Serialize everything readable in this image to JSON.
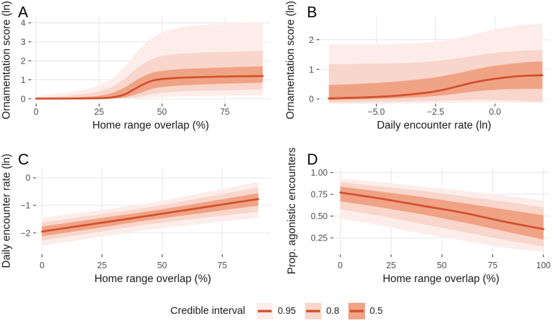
{
  "figure": {
    "background": "#ffffff"
  },
  "style": {
    "line_color": "#d1512b",
    "grid_color": "#ebebeb",
    "tick_color": "#333333",
    "tick_label_color": "#4d4d4d",
    "axis_title_color": "#1a1a1a",
    "panel_letter_color": "#000000"
  },
  "legend": {
    "title": "Credible interval",
    "items": [
      {
        "label": "0.95",
        "fill": "#fdedea"
      },
      {
        "label": "0.8",
        "fill": "#f9d6cb"
      },
      {
        "label": "0.5",
        "fill": "#f0a285"
      }
    ]
  },
  "chart_data": [
    {
      "panel_label": "A",
      "type": "area",
      "xlabel": "Home range overlap (%)",
      "ylabel": "Ornamentation score (ln)",
      "xlim": [
        -2,
        93
      ],
      "ylim": [
        -0.26,
        4.33
      ],
      "grid": true,
      "xticks": [
        {
          "v": 0,
          "label": "0"
        },
        {
          "v": 25,
          "label": "25"
        },
        {
          "v": 50,
          "label": "50"
        },
        {
          "v": 75,
          "label": "75"
        }
      ],
      "yticks": [
        {
          "v": 0,
          "label": "0"
        },
        {
          "v": 1,
          "label": "1"
        },
        {
          "v": 2,
          "label": "2"
        },
        {
          "v": 3,
          "label": "3"
        },
        {
          "v": 4,
          "label": "4"
        }
      ],
      "x": [
        0,
        10,
        20,
        25,
        30,
        35,
        40,
        45,
        50,
        60,
        75,
        90
      ],
      "line": [
        0.01,
        0.01,
        0.02,
        0.03,
        0.07,
        0.22,
        0.58,
        0.9,
        1.04,
        1.12,
        1.17,
        1.2
      ],
      "ribbons": [
        {
          "level": "0.95",
          "color": "#fdedea",
          "lower": [
            0,
            0,
            0,
            0,
            0,
            0.01,
            0.02,
            0.06,
            0.09,
            0.13,
            0.16,
            0.18
          ],
          "upper": [
            0.15,
            0.3,
            0.52,
            0.72,
            1.05,
            1.65,
            2.45,
            3.1,
            3.5,
            3.82,
            3.95,
            4.0
          ]
        },
        {
          "level": "0.8",
          "color": "#f9d6cb",
          "lower": [
            0,
            0,
            0,
            0,
            0.01,
            0.03,
            0.1,
            0.22,
            0.32,
            0.4,
            0.45,
            0.5
          ],
          "upper": [
            0.06,
            0.13,
            0.27,
            0.4,
            0.62,
            1.05,
            1.6,
            2.02,
            2.25,
            2.4,
            2.47,
            2.52
          ]
        },
        {
          "level": "0.5",
          "color": "#f0a285",
          "lower": [
            0,
            0,
            0,
            0.01,
            0.02,
            0.07,
            0.25,
            0.48,
            0.62,
            0.72,
            0.79,
            0.85
          ],
          "upper": [
            0.02,
            0.05,
            0.1,
            0.16,
            0.3,
            0.58,
            1.0,
            1.32,
            1.47,
            1.58,
            1.65,
            1.71
          ]
        }
      ]
    },
    {
      "panel_label": "B",
      "type": "area",
      "xlabel": "Daily encounter rate (ln)",
      "ylabel": "Ornamentation score (ln)",
      "xlim": [
        -7.4,
        2.3
      ],
      "ylim": [
        -0.16,
        2.78
      ],
      "grid": true,
      "xticks": [
        {
          "v": -5,
          "label": "−5.0"
        },
        {
          "v": -2.5,
          "label": "−2.5"
        },
        {
          "v": 0,
          "label": "0.0"
        }
      ],
      "yticks": [
        {
          "v": 0,
          "label": "0"
        },
        {
          "v": 1,
          "label": "1"
        },
        {
          "v": 2,
          "label": "2"
        }
      ],
      "x": [
        -7,
        -6,
        -5,
        -4,
        -3,
        -2.5,
        -2,
        -1.5,
        -1,
        -0.5,
        0,
        0.5,
        1,
        1.5,
        2
      ],
      "line": [
        0.02,
        0.04,
        0.07,
        0.12,
        0.2,
        0.26,
        0.34,
        0.44,
        0.54,
        0.62,
        0.68,
        0.73,
        0.77,
        0.79,
        0.8
      ],
      "ribbons": [
        {
          "level": "0.95",
          "color": "#fdedea",
          "lower": [
            -0.16,
            -0.16,
            -0.16,
            -0.15,
            -0.15,
            -0.14,
            -0.14,
            -0.13,
            -0.13,
            -0.12,
            -0.12,
            -0.12,
            -0.13,
            -0.13,
            -0.14
          ],
          "upper": [
            1.85,
            1.84,
            1.84,
            1.86,
            1.9,
            1.94,
            1.99,
            2.07,
            2.16,
            2.26,
            2.35,
            2.42,
            2.48,
            2.52,
            2.55
          ]
        },
        {
          "level": "0.8",
          "color": "#f9d6cb",
          "lower": [
            -0.12,
            -0.11,
            -0.1,
            -0.09,
            -0.07,
            -0.06,
            -0.05,
            -0.04,
            -0.03,
            -0.03,
            -0.04,
            -0.05,
            -0.06,
            -0.08,
            -0.09
          ],
          "upper": [
            1.18,
            1.18,
            1.19,
            1.21,
            1.25,
            1.28,
            1.33,
            1.38,
            1.44,
            1.5,
            1.55,
            1.59,
            1.62,
            1.64,
            1.65
          ]
        },
        {
          "level": "0.5",
          "color": "#f0a285",
          "lower": [
            -0.04,
            -0.02,
            0.0,
            0.03,
            0.07,
            0.1,
            0.14,
            0.19,
            0.24,
            0.28,
            0.31,
            0.33,
            0.34,
            0.34,
            0.34
          ],
          "upper": [
            0.47,
            0.5,
            0.54,
            0.6,
            0.68,
            0.73,
            0.8,
            0.88,
            0.97,
            1.05,
            1.12,
            1.17,
            1.22,
            1.25,
            1.27
          ]
        }
      ]
    },
    {
      "panel_label": "C",
      "type": "area",
      "xlabel": "Home range overlap (%)",
      "ylabel": "Daily encounter rate (ln)",
      "xlim": [
        -2.5,
        95
      ],
      "ylim": [
        -2.78,
        0.38
      ],
      "grid": true,
      "xticks": [
        {
          "v": 0,
          "label": "0"
        },
        {
          "v": 25,
          "label": "25"
        },
        {
          "v": 50,
          "label": "50"
        },
        {
          "v": 75,
          "label": "75"
        }
      ],
      "yticks": [
        {
          "v": 0,
          "label": "0"
        },
        {
          "v": -1,
          "label": "−1"
        },
        {
          "v": -2,
          "label": "−2"
        }
      ],
      "x": [
        0,
        22.5,
        45,
        67.5,
        90
      ],
      "line": [
        -1.95,
        -1.66,
        -1.37,
        -1.07,
        -0.77
      ],
      "ribbons": [
        {
          "level": "0.95",
          "color": "#fdedea",
          "lower": [
            -2.47,
            -2.17,
            -1.88,
            -1.66,
            -1.45
          ],
          "upper": [
            -1.45,
            -1.19,
            -0.91,
            -0.53,
            -0.15
          ]
        },
        {
          "level": "0.8",
          "color": "#f9d6cb",
          "lower": [
            -2.28,
            -1.98,
            -1.68,
            -1.45,
            -1.23
          ],
          "upper": [
            -1.62,
            -1.35,
            -1.06,
            -0.71,
            -0.35
          ]
        },
        {
          "level": "0.5",
          "color": "#f0a285",
          "lower": [
            -2.12,
            -1.83,
            -1.53,
            -1.27,
            -1.01
          ],
          "upper": [
            -1.77,
            -1.49,
            -1.21,
            -0.89,
            -0.56
          ]
        }
      ]
    },
    {
      "panel_label": "D",
      "type": "area",
      "xlabel": "Home range overlap (%)",
      "ylabel": "Prop. agonistic encounters",
      "xlim": [
        -3.5,
        103
      ],
      "ylim": [
        0.06,
        1.06
      ],
      "grid": true,
      "xticks": [
        {
          "v": 0,
          "label": "0"
        },
        {
          "v": 25,
          "label": "25"
        },
        {
          "v": 50,
          "label": "50"
        },
        {
          "v": 75,
          "label": "75"
        },
        {
          "v": 100,
          "label": "100"
        }
      ],
      "yticks": [
        {
          "v": 1.0,
          "label": "1.00"
        },
        {
          "v": 0.75,
          "label": "0.75"
        },
        {
          "v": 0.5,
          "label": "0.50"
        },
        {
          "v": 0.25,
          "label": "0.25"
        }
      ],
      "x": [
        0,
        20,
        40,
        60,
        80,
        100
      ],
      "line": [
        0.77,
        0.7,
        0.62,
        0.54,
        0.44,
        0.35
      ],
      "ribbons": [
        {
          "level": "0.95",
          "color": "#fdedea",
          "lower": [
            0.47,
            0.39,
            0.3,
            0.22,
            0.14,
            0.09
          ],
          "upper": [
            0.93,
            0.89,
            0.84,
            0.79,
            0.74,
            0.68
          ]
        },
        {
          "level": "0.8",
          "color": "#f9d6cb",
          "lower": [
            0.58,
            0.5,
            0.41,
            0.32,
            0.23,
            0.15
          ],
          "upper": [
            0.89,
            0.84,
            0.79,
            0.73,
            0.67,
            0.6
          ]
        },
        {
          "level": "0.5",
          "color": "#f0a285",
          "lower": [
            0.67,
            0.6,
            0.52,
            0.43,
            0.33,
            0.23
          ],
          "upper": [
            0.84,
            0.78,
            0.72,
            0.65,
            0.58,
            0.51
          ]
        }
      ]
    }
  ]
}
